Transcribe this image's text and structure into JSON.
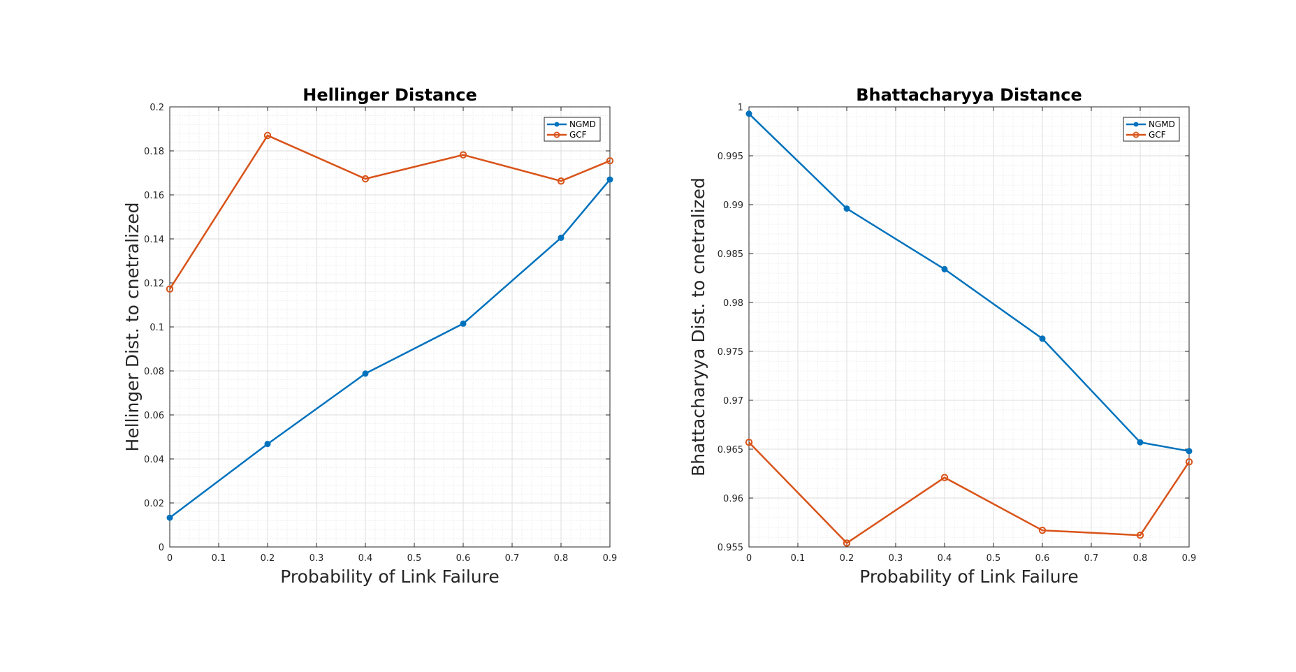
{
  "chart_data": [
    {
      "type": "line",
      "title": "Hellinger Distance",
      "xlabel": "Probability of Link Failure",
      "ylabel": "Hellinger Dist. to cnetralized",
      "x": [
        0,
        0.2,
        0.4,
        0.6,
        0.8,
        0.9
      ],
      "xlim": [
        0,
        0.9
      ],
      "ylim": [
        0,
        0.2
      ],
      "xticks": [
        "0",
        "0.1",
        "0.2",
        "0.3",
        "0.4",
        "0.5",
        "0.6",
        "0.7",
        "0.8",
        "0.9"
      ],
      "xtick_values": [
        0,
        0.1,
        0.2,
        0.3,
        0.4,
        0.5,
        0.6,
        0.7,
        0.8,
        0.9
      ],
      "yticks": [
        "0",
        "0.02",
        "0.04",
        "0.06",
        "0.08",
        "0.1",
        "0.12",
        "0.14",
        "0.16",
        "0.18",
        "0.2"
      ],
      "ytick_values": [
        0,
        0.02,
        0.04,
        0.06,
        0.08,
        0.1,
        0.12,
        0.14,
        0.16,
        0.18,
        0.2
      ],
      "grid": true,
      "legend": "top-right",
      "series": [
        {
          "name": "NGMD",
          "color": "#0072BD",
          "marker": "filled-circle",
          "values": [
            0.0133,
            0.0468,
            0.0788,
            0.1015,
            0.1405,
            0.167
          ]
        },
        {
          "name": "GCF",
          "color": "#D95319",
          "marker": "open-circle",
          "values": [
            0.1172,
            0.187,
            0.1673,
            0.1782,
            0.1663,
            0.1755
          ]
        }
      ]
    },
    {
      "type": "line",
      "title": "Bhattacharyya Distance",
      "xlabel": "Probability of Link Failure",
      "ylabel": "Bhattacharyya Dist. to cnetralized",
      "x": [
        0,
        0.2,
        0.4,
        0.6,
        0.8,
        0.9
      ],
      "xlim": [
        0,
        0.9
      ],
      "ylim": [
        0.955,
        1
      ],
      "xticks": [
        "0",
        "0.1",
        "0.2",
        "0.3",
        "0.4",
        "0.5",
        "0.6",
        "0.7",
        "0.8",
        "0.9"
      ],
      "xtick_values": [
        0,
        0.1,
        0.2,
        0.3,
        0.4,
        0.5,
        0.6,
        0.7,
        0.8,
        0.9
      ],
      "yticks": [
        "0.955",
        "0.96",
        "0.965",
        "0.97",
        "0.975",
        "0.98",
        "0.985",
        "0.99",
        "0.995",
        "1"
      ],
      "ytick_values": [
        0.955,
        0.96,
        0.965,
        0.97,
        0.975,
        0.98,
        0.985,
        0.99,
        0.995,
        1
      ],
      "grid": true,
      "legend": "top-right",
      "series": [
        {
          "name": "NGMD",
          "color": "#0072BD",
          "marker": "filled-circle",
          "values": [
            0.9993,
            0.9896,
            0.9834,
            0.9763,
            0.9657,
            0.9648
          ]
        },
        {
          "name": "GCF",
          "color": "#D95319",
          "marker": "open-circle",
          "values": [
            0.9657,
            0.9554,
            0.9621,
            0.9567,
            0.9562,
            0.9637
          ]
        }
      ]
    }
  ]
}
